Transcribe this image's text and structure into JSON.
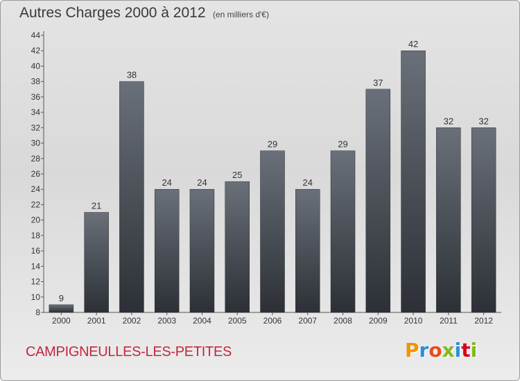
{
  "header": {
    "title": "Autres Charges 2000 à 2012",
    "unit": "(en milliers d'€)"
  },
  "footer": {
    "commune": "CAMPIGNEULLES-LES-PETITES",
    "logo": "Proxiti",
    "logo_colors": [
      "#f29400",
      "#2b8fd8",
      "#e84b1c",
      "#84b819",
      "#2b8fd8",
      "#d6001c",
      "#84b819"
    ]
  },
  "colors": {
    "bar_top": "#6a7079",
    "bar_bottom": "#2c3036",
    "axis": "#555555",
    "text": "#333333"
  },
  "chart_data": {
    "type": "bar",
    "categories": [
      "2000",
      "2001",
      "2002",
      "2003",
      "2004",
      "2005",
      "2006",
      "2007",
      "2008",
      "2009",
      "2010",
      "2011",
      "2012"
    ],
    "values": [
      9,
      21,
      38,
      24,
      24,
      25,
      29,
      24,
      29,
      37,
      42,
      32,
      32
    ],
    "data_labels": [
      "9",
      "21",
      "38",
      "24",
      "24",
      "25",
      "29",
      "24",
      "29",
      "37",
      "42",
      "32",
      "32"
    ],
    "yticks": [
      "8",
      "10",
      "12",
      "14",
      "16",
      "18",
      "20",
      "22",
      "24",
      "26",
      "28",
      "30",
      "32",
      "34",
      "36",
      "38",
      "40",
      "42",
      "44"
    ],
    "ylim": [
      8,
      44
    ],
    "title": "Autres Charges 2000 à 2012",
    "xlabel": "",
    "ylabel": "",
    "grid": false,
    "legend": "none"
  }
}
